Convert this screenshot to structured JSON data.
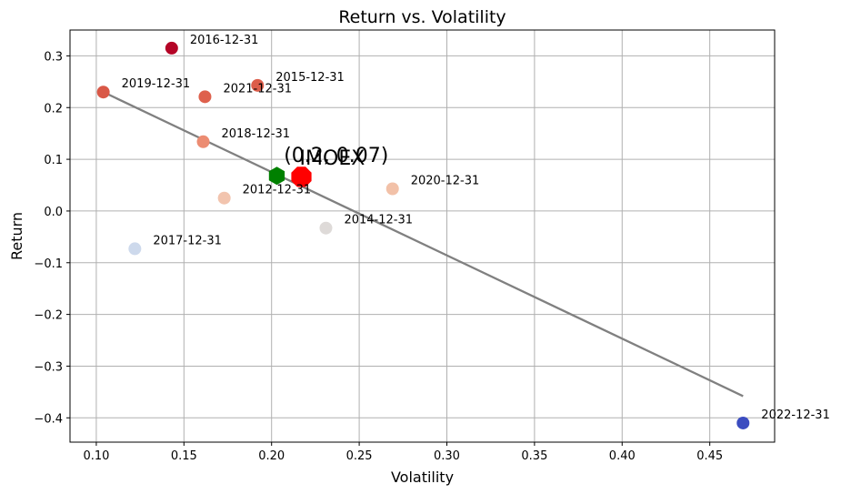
{
  "chart_data": {
    "type": "scatter",
    "title": "Return vs. Volatility",
    "xlabel": "Volatility",
    "ylabel": "Return",
    "xlim": [
      0.085,
      0.487
    ],
    "ylim": [
      -0.447,
      0.35
    ],
    "x_ticks": [
      0.1,
      0.15,
      0.2,
      0.25,
      0.3,
      0.35,
      0.4,
      0.45
    ],
    "x_tick_labels": [
      "0.10",
      "0.15",
      "0.20",
      "0.25",
      "0.30",
      "0.35",
      "0.40",
      "0.45"
    ],
    "y_ticks": [
      0.3,
      0.2,
      0.1,
      0.0,
      -0.1,
      -0.2,
      -0.3,
      -0.4
    ],
    "y_tick_labels": [
      "0.3",
      "0.2",
      "0.1",
      "0.0",
      "−0.1",
      "−0.2",
      "−0.3",
      "−0.4"
    ],
    "grid": true,
    "points": [
      {
        "label": "2012-12-31",
        "x": 0.173,
        "y": 0.025,
        "color": "#f2c4ae"
      },
      {
        "label": "2014-12-31",
        "x": 0.231,
        "y": -0.033,
        "color": "#dedad8"
      },
      {
        "label": "2015-12-31",
        "x": 0.192,
        "y": 0.243,
        "color": "#dc5d4a"
      },
      {
        "label": "2016-12-31",
        "x": 0.143,
        "y": 0.315,
        "color": "#b40426"
      },
      {
        "label": "2017-12-31",
        "x": 0.122,
        "y": -0.073,
        "color": "#cdd9ec"
      },
      {
        "label": "2018-12-31",
        "x": 0.161,
        "y": 0.134,
        "color": "#ec8c72"
      },
      {
        "label": "2019-12-31",
        "x": 0.104,
        "y": 0.23,
        "color": "#d95847"
      },
      {
        "label": "2020-12-31",
        "x": 0.269,
        "y": 0.043,
        "color": "#f2c1a8"
      },
      {
        "label": "2021-12-31",
        "x": 0.162,
        "y": 0.221,
        "color": "#de614d"
      },
      {
        "label": "2022-12-31",
        "x": 0.469,
        "y": -0.41,
        "color": "#3b4cc0"
      }
    ],
    "trend_line": {
      "x": [
        0.104,
        0.469
      ],
      "y": [
        0.23,
        -0.358
      ],
      "color": "#808080"
    },
    "highlight_points": [
      {
        "x": 0.203,
        "y": 0.068,
        "color": "#008000",
        "shape": "hexagon",
        "name": "portfolio"
      },
      {
        "x": 0.217,
        "y": 0.066,
        "color": "#ff0000",
        "shape": "octagon",
        "name": "index"
      }
    ],
    "overlay_labels": [
      {
        "text": "(0.2, 0.07)",
        "x": 0.207,
        "y": 0.095
      },
      {
        "text": "IMOEX",
        "x": 0.216,
        "y": 0.09
      }
    ]
  }
}
